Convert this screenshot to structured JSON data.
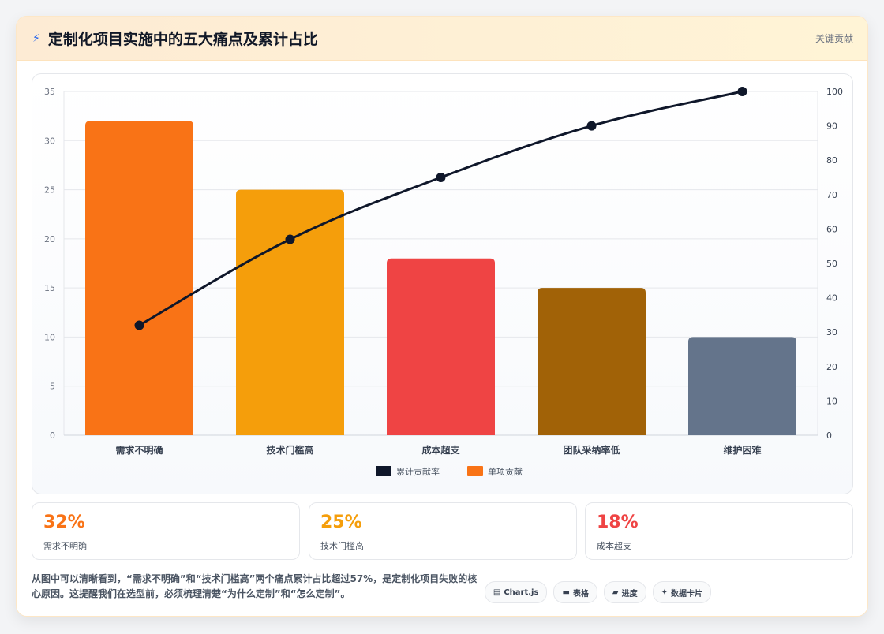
{
  "header": {
    "bolt_icon": "lightning-icon",
    "title": "定制化项目实施中的五大痛点及累计占比",
    "tag": "关键贡献"
  },
  "chart_data": {
    "type": "bar",
    "title": "",
    "categories": [
      "需求不明确",
      "技术门槛高",
      "成本超支",
      "团队采纳率低",
      "维护困难"
    ],
    "series": [
      {
        "name": "单项贡献",
        "kind": "bar",
        "axis": "left",
        "values": [
          32,
          25,
          18,
          15,
          10
        ],
        "colors": [
          "#f97316",
          "#f59e0b",
          "#ef4444",
          "#a16207",
          "#64748b"
        ]
      },
      {
        "name": "累计贡献率",
        "kind": "line",
        "axis": "right",
        "values": [
          32,
          57,
          75,
          90,
          100
        ],
        "color": "#0f172a"
      }
    ],
    "y_left": {
      "min": 0,
      "max": 35,
      "ticks": [
        0,
        5,
        10,
        15,
        20,
        25,
        30,
        35
      ]
    },
    "y_right": {
      "min": 0,
      "max": 100,
      "ticks": [
        0,
        10,
        20,
        30,
        40,
        50,
        60,
        70,
        80,
        90,
        100
      ]
    },
    "legend": {
      "position": "bottom",
      "items": [
        {
          "label": "累计贡献率",
          "color": "#0f172a"
        },
        {
          "label": "单项贡献",
          "color": "#f97316"
        }
      ]
    },
    "grid": true
  },
  "stats": [
    {
      "value": "32%",
      "label": "需求不明确",
      "color": "#f97316"
    },
    {
      "value": "25%",
      "label": "技术门槛高",
      "color": "#f59e0b"
    },
    {
      "value": "18%",
      "label": "成本超支",
      "color": "#ef4444"
    }
  ],
  "footer": {
    "note": "从图中可以清晰看到，“需求不明确”和“技术门槛高”两个痛点累计占比超过57%，是定制化项目失败的核心原因。这提醒我们在选型前，必须梳理清楚“为什么定制”和“怎么定制”。",
    "chips": [
      {
        "icon": "chart-icon",
        "glyph": "▤",
        "label": "Chart.js"
      },
      {
        "icon": "table-icon",
        "glyph": "▬",
        "label": "表格"
      },
      {
        "icon": "progress-icon",
        "glyph": "▰",
        "label": "进度"
      },
      {
        "icon": "data-card-icon",
        "glyph": "✦",
        "label": "数据卡片"
      }
    ]
  }
}
